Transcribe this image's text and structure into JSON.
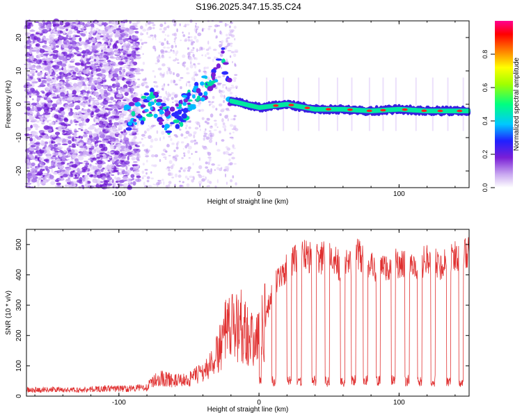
{
  "title": "S196.2025.347.15.35.C24",
  "chart_data": [
    {
      "type": "heatmap",
      "name": "spectrogram",
      "xlabel": "Height of straight line (km)",
      "ylabel": "Frequency (Hz)",
      "xlim": [
        -166,
        150
      ],
      "ylim": [
        -25,
        25
      ],
      "xticks": [
        -100,
        0,
        100
      ],
      "yticks": [
        -20,
        -10,
        0,
        10,
        20
      ],
      "colorbar": {
        "label": "Normalized spectral amplitude",
        "range": [
          0.0,
          1.0
        ],
        "ticks": [
          0.0,
          0.2,
          0.4,
          0.6,
          0.8
        ],
        "tick_labels": [
          "0.0",
          "0.2",
          "0.4",
          "0.6",
          "0.8"
        ],
        "colormap": "rainbow"
      },
      "ridge": {
        "x": [
          -95,
          -85,
          -75,
          -65,
          -55,
          -45,
          -35,
          -25,
          -20,
          0,
          20,
          40,
          60,
          80,
          100,
          120,
          140,
          150
        ],
        "frequency": [
          -4,
          -2,
          1,
          -5,
          -2,
          3,
          7,
          14,
          1,
          -1,
          0,
          -1.5,
          -1.5,
          -2,
          -1.5,
          -2,
          -2,
          -2
        ]
      }
    },
    {
      "type": "line",
      "name": "snr",
      "xlabel": "Height of straight line (km)",
      "ylabel": "SNR (10 * v/v)",
      "xlim": [
        -166,
        150
      ],
      "ylim": [
        0,
        550
      ],
      "xticks": [
        -100,
        0,
        100
      ],
      "yticks": [
        0,
        100,
        200,
        300,
        400,
        500
      ],
      "series": [
        {
          "name": "SNR",
          "color": "#e03030",
          "x": [
            -166,
            -150,
            -130,
            -110,
            -90,
            -80,
            -75,
            -70,
            -60,
            -50,
            -40,
            -35,
            -30,
            -25,
            -20,
            -15,
            -10,
            -5,
            0,
            5,
            10,
            20,
            30,
            40,
            50,
            60,
            70,
            80,
            90,
            100,
            110,
            120,
            130,
            140,
            150
          ],
          "y": [
            20,
            22,
            20,
            25,
            25,
            30,
            50,
            60,
            50,
            55,
            80,
            100,
            140,
            200,
            220,
            240,
            230,
            180,
            200,
            260,
            360,
            420,
            470,
            450,
            460,
            420,
            470,
            430,
            420,
            440,
            420,
            450,
            430,
            460,
            470
          ]
        }
      ]
    }
  ],
  "colors": {
    "line": "#e03030",
    "axis": "#000000"
  }
}
